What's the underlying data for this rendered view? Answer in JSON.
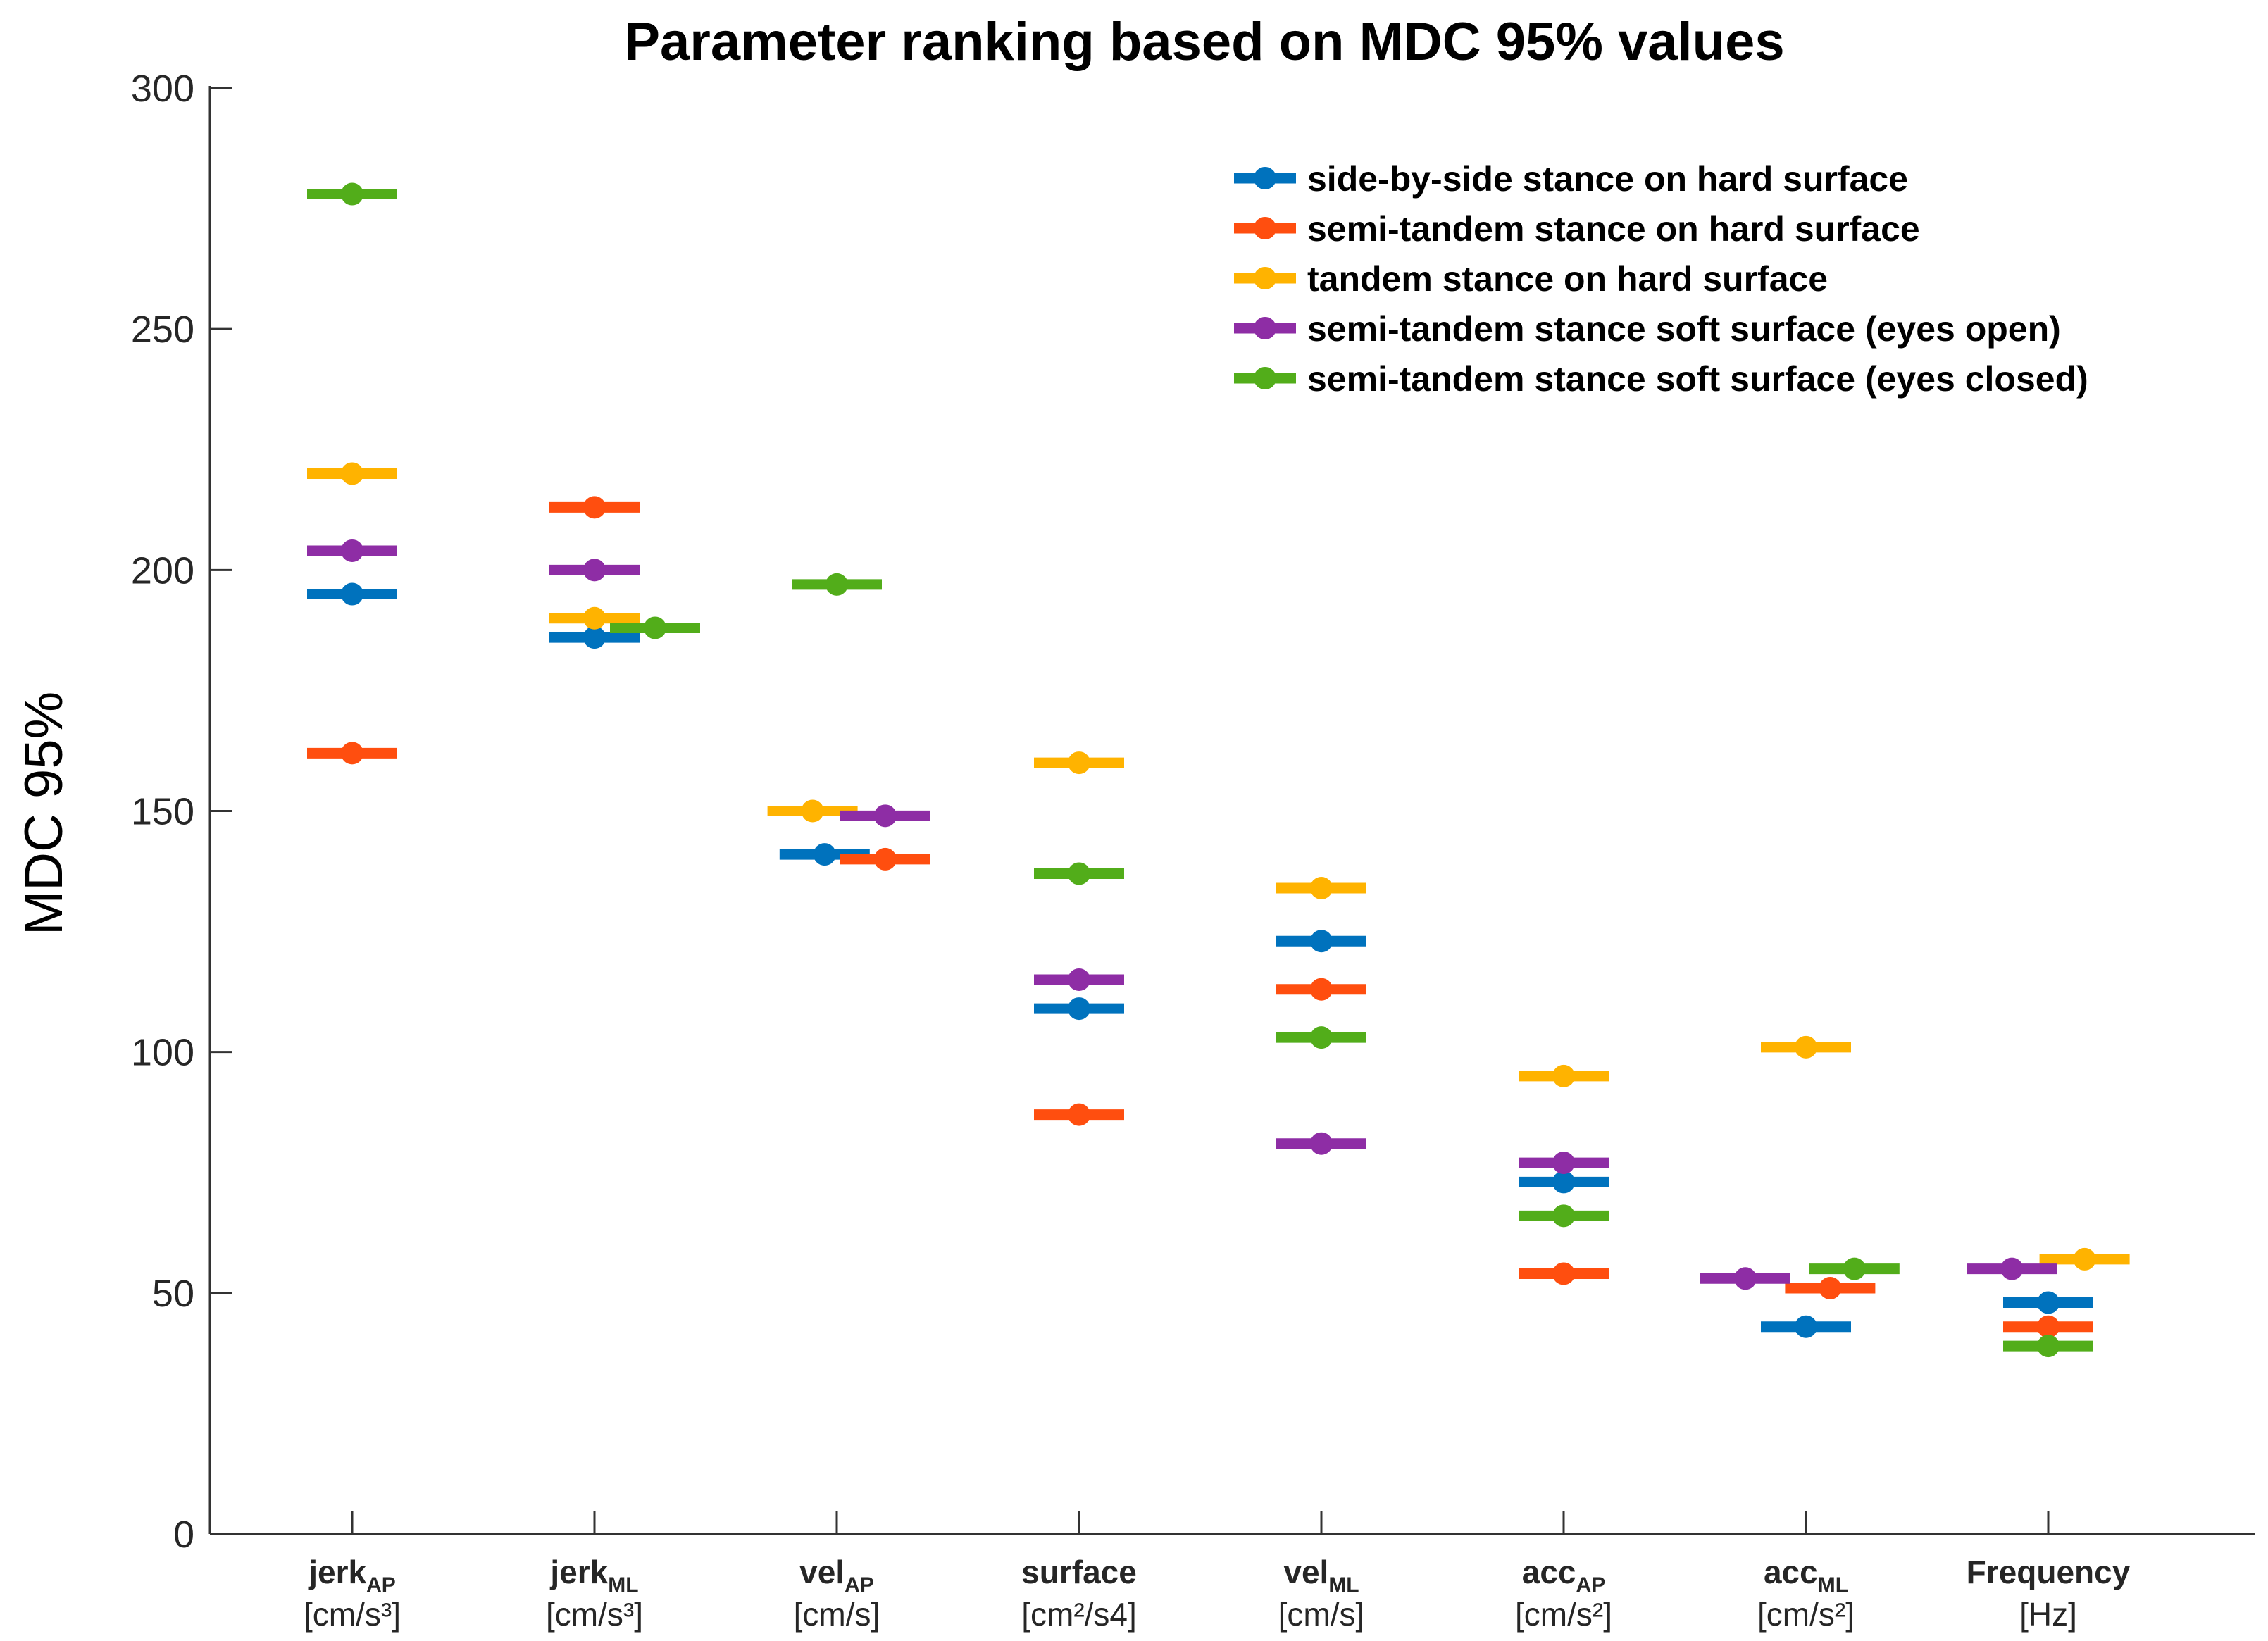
{
  "chart_data": {
    "type": "scatter",
    "title": "Parameter ranking based on MDC 95% values",
    "xlabel": "",
    "ylabel": "MDC 95%",
    "ylim": [
      0,
      300
    ],
    "yticks": [
      0,
      50,
      100,
      150,
      200,
      250,
      300
    ],
    "grid": false,
    "legend_position": "top-right",
    "categories": [
      {
        "name": "jerk",
        "sub": "AP",
        "unit": "[cm/s³]"
      },
      {
        "name": "jerk",
        "sub": "ML",
        "unit": "[cm/s³]"
      },
      {
        "name": "vel",
        "sub": "AP",
        "unit": "[cm/s]"
      },
      {
        "name": "surface",
        "sub": "",
        "unit": "[cm²/s4]"
      },
      {
        "name": "vel",
        "sub": "ML",
        "unit": "[cm/s]"
      },
      {
        "name": "acc",
        "sub": "AP",
        "unit": "[cm/s²]"
      },
      {
        "name": "acc",
        "sub": "ML",
        "unit": "[cm/s²]"
      },
      {
        "name": "Frequency",
        "sub": "",
        "unit": "[Hz]"
      }
    ],
    "series": [
      {
        "name": "side-by-side stance on hard surface",
        "color": "#0072BD",
        "values": [
          195,
          186,
          141,
          109,
          123,
          73,
          43,
          48
        ],
        "offsets": [
          0,
          0,
          -0.05,
          0,
          0,
          0,
          0,
          0
        ]
      },
      {
        "name": "semi-tandem stance on hard surface",
        "color": "#FF4E0F",
        "values": [
          162,
          213,
          140,
          87,
          113,
          54,
          51,
          43
        ],
        "offsets": [
          0,
          0,
          0.2,
          0,
          0,
          0,
          0.1,
          0
        ]
      },
      {
        "name": "tandem stance on hard surface",
        "color": "#FFB300",
        "values": [
          220,
          190,
          150,
          160,
          134,
          95,
          101,
          57
        ],
        "offsets": [
          0,
          0,
          -0.1,
          0,
          0,
          0,
          0,
          0.15
        ]
      },
      {
        "name": "semi-tandem stance soft surface (eyes open)",
        "color": "#8E2DA5",
        "values": [
          204,
          200,
          149,
          115,
          81,
          77,
          53,
          55
        ],
        "offsets": [
          0,
          0,
          0.2,
          0,
          0,
          0,
          -0.25,
          -0.15
        ]
      },
      {
        "name": "semi-tandem stance soft surface (eyes closed)",
        "color": "#52AD1A",
        "values": [
          278,
          188,
          197,
          137,
          103,
          66,
          55,
          39
        ],
        "offsets": [
          0,
          0.25,
          0,
          0,
          0,
          0,
          0.2,
          0
        ]
      }
    ]
  }
}
